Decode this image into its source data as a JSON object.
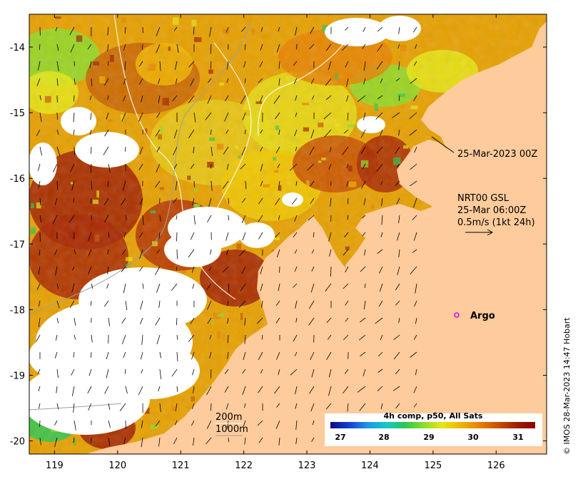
{
  "map": {
    "lon_range": [
      118.6,
      126.8
    ],
    "lat_range": [
      -20.2,
      -13.5
    ],
    "lon_ticks": [
      119,
      120,
      121,
      122,
      123,
      124,
      125,
      126
    ],
    "lat_ticks": [
      -14,
      -15,
      -16,
      -17,
      -18,
      -19,
      -20
    ]
  },
  "annotations": {
    "track_time": "25-Mar-2023 00Z",
    "current_title": "NRT00 GSL",
    "current_time": "25-Mar 06:00Z",
    "current_scale": "0.5m/s (1kt 24h)",
    "argo_label": "Argo",
    "depth_200": "200m",
    "depth_1000": "1000m"
  },
  "colorbar": {
    "title": "4h comp, p50, All Sats",
    "ticks": [
      "27",
      "28",
      "29",
      "30",
      "31"
    ],
    "colors": [
      "#0a0a82",
      "#1440d2",
      "#1e96e6",
      "#14c8c8",
      "#28c850",
      "#8cdc28",
      "#e6e614",
      "#f0b400",
      "#e68200",
      "#c85000",
      "#a01e00",
      "#8c0000"
    ]
  },
  "credit": "© IMOS 28-Mar-2023 14:47 Hobart",
  "colors": {
    "land": "#fdcb9c",
    "no_data": "#ffffff",
    "argo_marker": "#e000e0"
  }
}
